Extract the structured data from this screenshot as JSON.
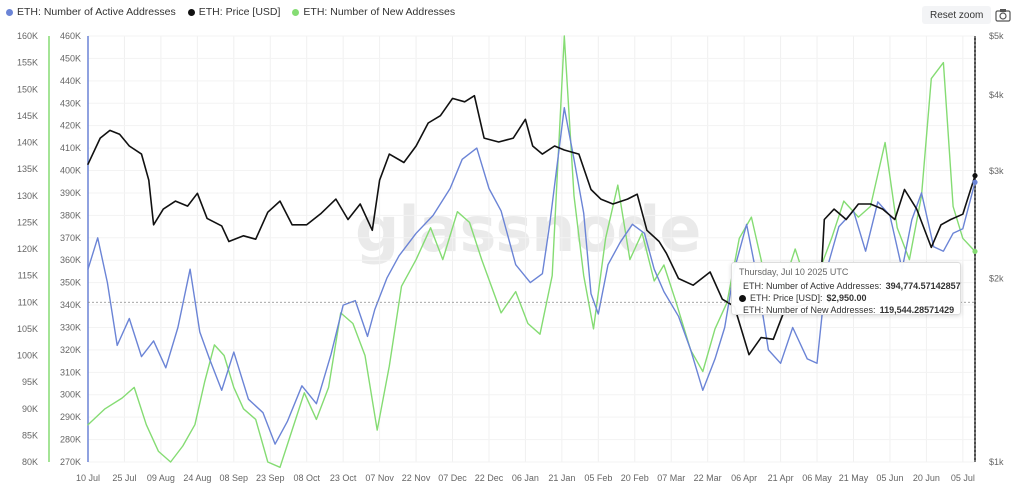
{
  "legend": [
    {
      "label": "ETH: Number of Active Addresses",
      "color": "#6b84d6"
    },
    {
      "label": "ETH: Price [USD]",
      "color": "#111111"
    },
    {
      "label": "ETH: Number of New Addresses",
      "color": "#85dc73"
    }
  ],
  "toolbar": {
    "reset_zoom": "Reset zoom",
    "camera_icon": "camera-icon"
  },
  "watermark": "glassnode",
  "tooltip": {
    "date": "Thursday, Jul 10 2025 UTC",
    "rows": [
      {
        "label": "ETH: Number of Active Addresses:",
        "value": "394,774.57142857",
        "color": "#6b84d6"
      },
      {
        "label": "ETH: Price [USD]:",
        "value": "$2,950.00",
        "color": "#111111"
      },
      {
        "label": "ETH: Number of New Addresses:",
        "value": "119,544.28571429",
        "color": "#85dc73"
      }
    ]
  },
  "chart_data": {
    "type": "line",
    "x_ticks": [
      "10 Jul",
      "25 Jul",
      "09 Aug",
      "24 Aug",
      "08 Sep",
      "23 Sep",
      "08 Oct",
      "23 Oct",
      "07 Nov",
      "22 Nov",
      "07 Dec",
      "22 Dec",
      "06 Jan",
      "21 Jan",
      "05 Feb",
      "20 Feb",
      "07 Mar",
      "22 Mar",
      "06 Apr",
      "21 Apr",
      "06 May",
      "21 May",
      "05 Jun",
      "20 Jun",
      "05 Jul"
    ],
    "x_range": [
      "2024-07-10",
      "2025-07-10"
    ],
    "y_axes": [
      {
        "name": "new",
        "ticks": [
          "80K",
          "85K",
          "90K",
          "95K",
          "100K",
          "105K",
          "110K",
          "115K",
          "120K",
          "125K",
          "130K",
          "135K",
          "140K",
          "145K",
          "150K",
          "155K",
          "160K"
        ],
        "range": [
          80000,
          160000
        ],
        "color": "#85dc73"
      },
      {
        "name": "active",
        "ticks": [
          "270K",
          "280K",
          "290K",
          "300K",
          "310K",
          "320K",
          "330K",
          "340K",
          "350K",
          "360K",
          "370K",
          "380K",
          "390K",
          "400K",
          "410K",
          "420K",
          "430K",
          "440K",
          "450K",
          "460K"
        ],
        "range": [
          270000,
          460000
        ],
        "color": "#6b84d6"
      },
      {
        "name": "price",
        "scale": "log",
        "ticks": [
          "$1k",
          "$2k",
          "$3k",
          "$4k",
          "$5k"
        ],
        "range": [
          1000,
          5000
        ],
        "color": "#111111"
      }
    ],
    "series": [
      {
        "name": "ETH: Number of Active Addresses",
        "axis": "active",
        "color": "#6b84d6",
        "points": [
          [
            "2024-07-10",
            356000
          ],
          [
            "2024-07-14",
            370000
          ],
          [
            "2024-07-18",
            350000
          ],
          [
            "2024-07-22",
            322000
          ],
          [
            "2024-07-27",
            334000
          ],
          [
            "2024-08-01",
            317000
          ],
          [
            "2024-08-06",
            324000
          ],
          [
            "2024-08-11",
            312000
          ],
          [
            "2024-08-16",
            330000
          ],
          [
            "2024-08-21",
            356000
          ],
          [
            "2024-08-25",
            328000
          ],
          [
            "2024-08-29",
            316000
          ],
          [
            "2024-09-03",
            302000
          ],
          [
            "2024-09-08",
            319000
          ],
          [
            "2024-09-14",
            298000
          ],
          [
            "2024-09-20",
            292000
          ],
          [
            "2024-09-25",
            278000
          ],
          [
            "2024-09-30",
            288000
          ],
          [
            "2024-10-06",
            304000
          ],
          [
            "2024-10-12",
            296000
          ],
          [
            "2024-10-18",
            318000
          ],
          [
            "2024-10-23",
            340000
          ],
          [
            "2024-10-28",
            342000
          ],
          [
            "2024-11-02",
            326000
          ],
          [
            "2024-11-05",
            338000
          ],
          [
            "2024-11-10",
            352000
          ],
          [
            "2024-11-15",
            362000
          ],
          [
            "2024-11-22",
            372000
          ],
          [
            "2024-11-29",
            380000
          ],
          [
            "2024-12-06",
            392000
          ],
          [
            "2024-12-11",
            405000
          ],
          [
            "2024-12-17",
            410000
          ],
          [
            "2024-12-22",
            392000
          ],
          [
            "2024-12-27",
            382000
          ],
          [
            "2025-01-02",
            358000
          ],
          [
            "2025-01-08",
            350000
          ],
          [
            "2025-01-13",
            354000
          ],
          [
            "2025-01-16",
            376000
          ],
          [
            "2025-01-19",
            402000
          ],
          [
            "2025-01-22",
            428000
          ],
          [
            "2025-01-26",
            405000
          ],
          [
            "2025-01-30",
            381000
          ],
          [
            "2025-02-02",
            345000
          ],
          [
            "2025-02-05",
            336000
          ],
          [
            "2025-02-09",
            358000
          ],
          [
            "2025-02-14",
            368000
          ],
          [
            "2025-02-19",
            376000
          ],
          [
            "2025-02-24",
            372000
          ],
          [
            "2025-02-28",
            356000
          ],
          [
            "2025-03-04",
            346000
          ],
          [
            "2025-03-10",
            335000
          ],
          [
            "2025-03-15",
            320000
          ],
          [
            "2025-03-20",
            302000
          ],
          [
            "2025-03-25",
            316000
          ],
          [
            "2025-03-29",
            330000
          ],
          [
            "2025-04-02",
            356000
          ],
          [
            "2025-04-07",
            376000
          ],
          [
            "2025-04-11",
            354000
          ],
          [
            "2025-04-16",
            320000
          ],
          [
            "2025-04-21",
            314000
          ],
          [
            "2025-04-26",
            330000
          ],
          [
            "2025-05-02",
            316000
          ],
          [
            "2025-05-06",
            314000
          ],
          [
            "2025-05-10",
            356000
          ],
          [
            "2025-05-15",
            375000
          ],
          [
            "2025-05-21",
            382000
          ],
          [
            "2025-05-26",
            364000
          ],
          [
            "2025-05-31",
            386000
          ],
          [
            "2025-06-05",
            380000
          ],
          [
            "2025-06-10",
            356000
          ],
          [
            "2025-06-14",
            378000
          ],
          [
            "2025-06-18",
            390000
          ],
          [
            "2025-06-23",
            366000
          ],
          [
            "2025-06-27",
            364000
          ],
          [
            "2025-07-01",
            372000
          ],
          [
            "2025-07-05",
            374000
          ],
          [
            "2025-07-10",
            394774.57
          ]
        ]
      },
      {
        "name": "ETH: Price [USD]",
        "axis": "price",
        "color": "#111111",
        "points": [
          [
            "2024-07-10",
            3080
          ],
          [
            "2024-07-15",
            3400
          ],
          [
            "2024-07-19",
            3500
          ],
          [
            "2024-07-23",
            3450
          ],
          [
            "2024-07-27",
            3300
          ],
          [
            "2024-08-01",
            3200
          ],
          [
            "2024-08-04",
            2900
          ],
          [
            "2024-08-06",
            2450
          ],
          [
            "2024-08-10",
            2600
          ],
          [
            "2024-08-15",
            2680
          ],
          [
            "2024-08-20",
            2630
          ],
          [
            "2024-08-24",
            2760
          ],
          [
            "2024-08-28",
            2510
          ],
          [
            "2024-09-03",
            2440
          ],
          [
            "2024-09-06",
            2300
          ],
          [
            "2024-09-12",
            2350
          ],
          [
            "2024-09-17",
            2320
          ],
          [
            "2024-09-22",
            2570
          ],
          [
            "2024-09-27",
            2680
          ],
          [
            "2024-10-02",
            2450
          ],
          [
            "2024-10-08",
            2450
          ],
          [
            "2024-10-14",
            2560
          ],
          [
            "2024-10-20",
            2700
          ],
          [
            "2024-10-25",
            2500
          ],
          [
            "2024-10-30",
            2650
          ],
          [
            "2024-11-04",
            2400
          ],
          [
            "2024-11-07",
            2900
          ],
          [
            "2024-11-11",
            3200
          ],
          [
            "2024-11-17",
            3100
          ],
          [
            "2024-11-22",
            3300
          ],
          [
            "2024-11-27",
            3600
          ],
          [
            "2024-12-02",
            3700
          ],
          [
            "2024-12-07",
            3950
          ],
          [
            "2024-12-12",
            3900
          ],
          [
            "2024-12-16",
            3990
          ],
          [
            "2024-12-20",
            3400
          ],
          [
            "2024-12-26",
            3350
          ],
          [
            "2025-01-01",
            3400
          ],
          [
            "2025-01-06",
            3650
          ],
          [
            "2025-01-09",
            3300
          ],
          [
            "2025-01-13",
            3200
          ],
          [
            "2025-01-18",
            3300
          ],
          [
            "2025-01-22",
            3250
          ],
          [
            "2025-01-28",
            3200
          ],
          [
            "2025-02-02",
            2800
          ],
          [
            "2025-02-06",
            2700
          ],
          [
            "2025-02-11",
            2650
          ],
          [
            "2025-02-17",
            2700
          ],
          [
            "2025-02-21",
            2750
          ],
          [
            "2025-02-25",
            2400
          ],
          [
            "2025-03-02",
            2300
          ],
          [
            "2025-03-05",
            2200
          ],
          [
            "2025-03-10",
            2000
          ],
          [
            "2025-03-16",
            1950
          ],
          [
            "2025-03-23",
            2050
          ],
          [
            "2025-03-28",
            1850
          ],
          [
            "2025-04-02",
            1800
          ],
          [
            "2025-04-08",
            1500
          ],
          [
            "2025-04-13",
            1600
          ],
          [
            "2025-04-18",
            1590
          ],
          [
            "2025-04-23",
            1790
          ],
          [
            "2025-04-28",
            1800
          ],
          [
            "2025-05-03",
            1820
          ],
          [
            "2025-05-07",
            1800
          ],
          [
            "2025-05-09",
            2500
          ],
          [
            "2025-05-13",
            2600
          ],
          [
            "2025-05-18",
            2500
          ],
          [
            "2025-05-23",
            2650
          ],
          [
            "2025-05-28",
            2650
          ],
          [
            "2025-06-02",
            2600
          ],
          [
            "2025-06-07",
            2500
          ],
          [
            "2025-06-11",
            2800
          ],
          [
            "2025-06-16",
            2600
          ],
          [
            "2025-06-22",
            2250
          ],
          [
            "2025-06-26",
            2450
          ],
          [
            "2025-06-30",
            2500
          ],
          [
            "2025-07-05",
            2550
          ],
          [
            "2025-07-10",
            2950
          ]
        ]
      },
      {
        "name": "ETH: Number of New Addresses",
        "axis": "new",
        "color": "#85dc73",
        "points": [
          [
            "2024-07-10",
            87000
          ],
          [
            "2024-07-17",
            90000
          ],
          [
            "2024-07-24",
            92000
          ],
          [
            "2024-07-29",
            94000
          ],
          [
            "2024-08-03",
            87000
          ],
          [
            "2024-08-08",
            82000
          ],
          [
            "2024-08-13",
            80000
          ],
          [
            "2024-08-18",
            83000
          ],
          [
            "2024-08-23",
            87000
          ],
          [
            "2024-08-27",
            95000
          ],
          [
            "2024-08-31",
            102000
          ],
          [
            "2024-09-04",
            100000
          ],
          [
            "2024-09-08",
            94000
          ],
          [
            "2024-09-12",
            90000
          ],
          [
            "2024-09-17",
            88000
          ],
          [
            "2024-09-22",
            80000
          ],
          [
            "2024-09-27",
            79000
          ],
          [
            "2024-10-02",
            86000
          ],
          [
            "2024-10-07",
            93000
          ],
          [
            "2024-10-12",
            88000
          ],
          [
            "2024-10-17",
            94000
          ],
          [
            "2024-10-22",
            108000
          ],
          [
            "2024-10-27",
            106000
          ],
          [
            "2024-11-01",
            100000
          ],
          [
            "2024-11-06",
            86000
          ],
          [
            "2024-11-11",
            98000
          ],
          [
            "2024-11-16",
            113000
          ],
          [
            "2024-11-22",
            118000
          ],
          [
            "2024-11-28",
            124000
          ],
          [
            "2024-12-03",
            118000
          ],
          [
            "2024-12-09",
            127000
          ],
          [
            "2024-12-14",
            125000
          ],
          [
            "2024-12-19",
            118000
          ],
          [
            "2024-12-23",
            113000
          ],
          [
            "2024-12-27",
            108000
          ],
          [
            "2025-01-02",
            112000
          ],
          [
            "2025-01-07",
            106000
          ],
          [
            "2025-01-12",
            104000
          ],
          [
            "2025-01-17",
            115000
          ],
          [
            "2025-01-22",
            160000
          ],
          [
            "2025-01-26",
            130000
          ],
          [
            "2025-01-30",
            115000
          ],
          [
            "2025-02-03",
            105000
          ],
          [
            "2025-02-08",
            122000
          ],
          [
            "2025-02-13",
            132000
          ],
          [
            "2025-02-18",
            118000
          ],
          [
            "2025-02-23",
            123000
          ],
          [
            "2025-02-28",
            114000
          ],
          [
            "2025-03-04",
            117000
          ],
          [
            "2025-03-09",
            110000
          ],
          [
            "2025-03-15",
            101000
          ],
          [
            "2025-03-20",
            97000
          ],
          [
            "2025-03-25",
            105000
          ],
          [
            "2025-03-30",
            110000
          ],
          [
            "2025-04-04",
            122000
          ],
          [
            "2025-04-09",
            126000
          ],
          [
            "2025-04-13",
            118000
          ],
          [
            "2025-04-17",
            108000
          ],
          [
            "2025-04-22",
            113000
          ],
          [
            "2025-04-27",
            120000
          ],
          [
            "2025-05-02",
            113000
          ],
          [
            "2025-05-07",
            116000
          ],
          [
            "2025-05-12",
            122000
          ],
          [
            "2025-05-17",
            129000
          ],
          [
            "2025-05-23",
            126000
          ],
          [
            "2025-05-28",
            128000
          ],
          [
            "2025-06-03",
            140000
          ],
          [
            "2025-06-08",
            124000
          ],
          [
            "2025-06-13",
            118000
          ],
          [
            "2025-06-18",
            130000
          ],
          [
            "2025-06-22",
            152000
          ],
          [
            "2025-06-27",
            155000
          ],
          [
            "2025-07-01",
            128000
          ],
          [
            "2025-07-05",
            122000
          ],
          [
            "2025-07-10",
            119544.29
          ]
        ]
      }
    ],
    "crosshair": {
      "date": "2025-07-10",
      "y_ref": 110000,
      "y_axis": "new"
    }
  }
}
